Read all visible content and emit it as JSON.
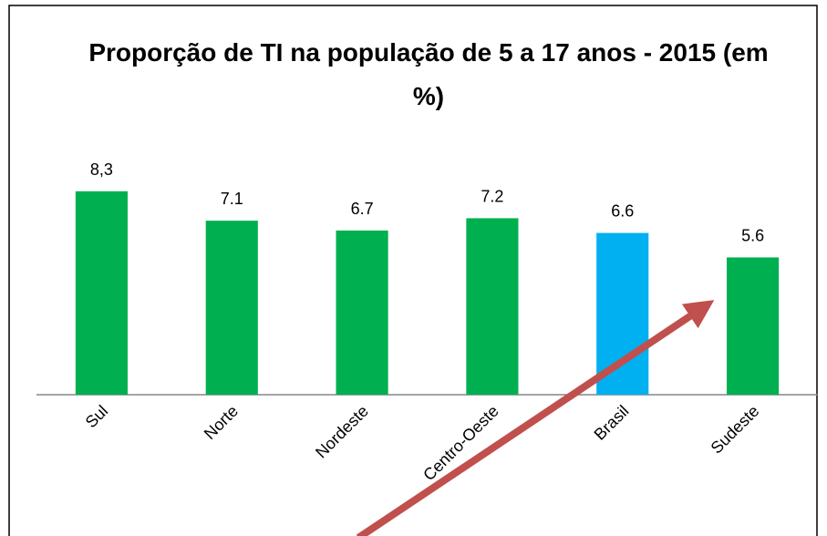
{
  "chart_data": {
    "type": "bar",
    "title": "Proporção de TI na população de 5 a 17 anos - 2015 (em %)",
    "categories": [
      "Sul",
      "Norte",
      "Nordeste",
      "Centro-Oeste",
      "Brasil",
      "Sudeste"
    ],
    "values": [
      8.3,
      7.1,
      6.7,
      7.2,
      6.6,
      5.6
    ],
    "value_labels": [
      "8,3",
      "7.1",
      "6.7",
      "7.2",
      "6.6",
      "5.6"
    ],
    "colors": [
      "#00b050",
      "#00b050",
      "#00b050",
      "#00b050",
      "#00b0f0",
      "#00b050"
    ],
    "ylim": [
      0,
      9
    ]
  }
}
